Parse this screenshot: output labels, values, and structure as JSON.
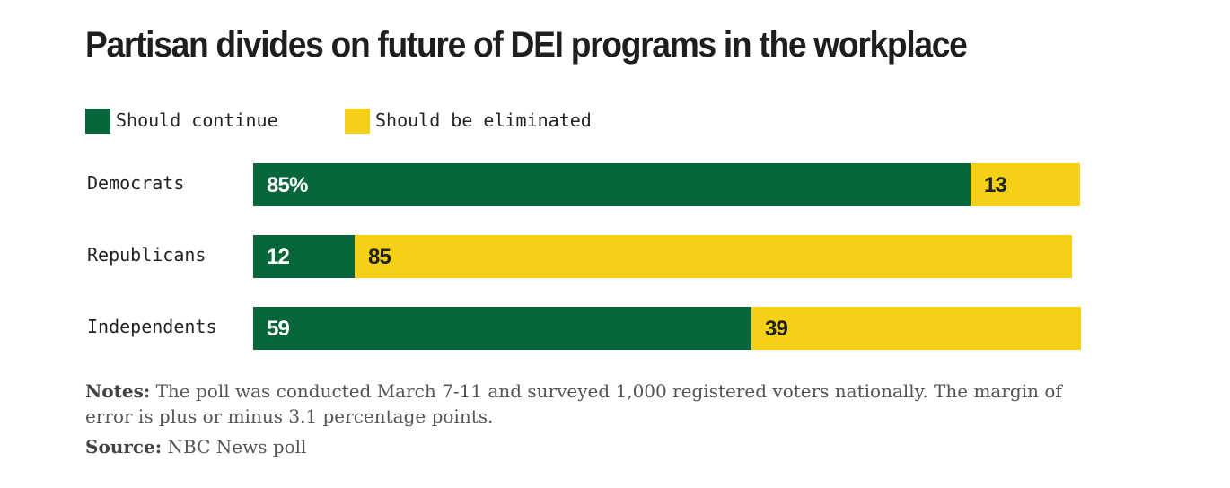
{
  "chart_data": {
    "type": "bar",
    "orientation": "horizontal",
    "stacked": true,
    "title": "Partisan divides on future of DEI programs in the workplace",
    "categories": [
      "Democrats",
      "Republicans",
      "Independents"
    ],
    "series": [
      {
        "name": "Should continue",
        "values": [
          85,
          12,
          59
        ],
        "labels": [
          "85%",
          "12",
          "59"
        ],
        "color": "#07663A",
        "label_color": "#ffffff"
      },
      {
        "name": "Should be eliminated",
        "values": [
          13,
          85,
          39
        ],
        "labels": [
          "13",
          "85",
          "39"
        ],
        "color": "#F5D018",
        "label_color": "#222222"
      }
    ],
    "xlim": [
      0,
      100
    ],
    "grid": false,
    "legend_position": "top-left"
  },
  "notes": {
    "label": "Notes:",
    "text": "The poll was conducted March 7-11 and surveyed 1,000 registered voters nationally. The margin of error is plus or minus 3.1 percentage points."
  },
  "source": {
    "label": "Source:",
    "text": "NBC News poll"
  }
}
